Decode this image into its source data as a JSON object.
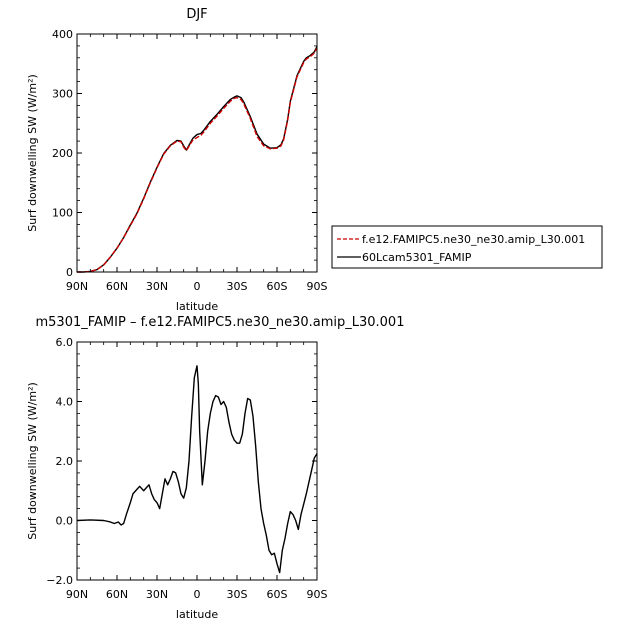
{
  "chart_data": [
    {
      "type": "line",
      "title": "DJF",
      "xlabel": "latitude",
      "ylabel": "Surf downwelling SW (W/m²)",
      "xlim": [
        90,
        -90
      ],
      "ylim": [
        0,
        400
      ],
      "xticks": [
        90,
        60,
        30,
        0,
        -30,
        -60,
        -90
      ],
      "xtick_labels": [
        "90N",
        "60N",
        "30N",
        "0",
        "30S",
        "60S",
        "90S"
      ],
      "yticks": [
        0,
        100,
        200,
        300,
        400
      ],
      "ytick_labels": [
        "0",
        "100",
        "200",
        "300",
        "400"
      ],
      "legend_position": "right, outside plot",
      "series": [
        {
          "name": "f.e12.FAMIPC5.ne30_ne30.amip_L30.001",
          "color": "#cc0000",
          "dash": "dashed",
          "x": [
            90,
            85,
            80,
            75,
            70,
            65,
            60,
            55,
            50,
            45,
            40,
            35,
            30,
            25,
            20,
            15,
            12,
            10,
            8,
            5,
            3,
            0,
            -3,
            -5,
            -10,
            -15,
            -20,
            -25,
            -28,
            -30,
            -33,
            -35,
            -40,
            -45,
            -50,
            -55,
            -60,
            -63,
            -65,
            -68,
            -70,
            -75,
            -80,
            -82,
            -85,
            -88,
            -90
          ],
          "y": [
            0,
            0,
            1,
            4,
            12,
            25,
            40,
            58,
            78,
            98,
            123,
            150,
            175,
            198,
            212,
            220,
            219,
            210,
            204,
            215,
            222,
            226,
            230,
            235,
            250,
            262,
            275,
            287,
            292,
            293,
            290,
            283,
            258,
            228,
            212,
            207,
            208,
            212,
            222,
            255,
            285,
            328,
            352,
            358,
            362,
            368,
            377
          ]
        },
        {
          "name": "60Lcam5301_FAMIP",
          "color": "#000000",
          "dash": "solid",
          "x": [
            90,
            85,
            80,
            75,
            70,
            65,
            60,
            55,
            50,
            45,
            40,
            35,
            30,
            25,
            20,
            15,
            12,
            10,
            8,
            5,
            3,
            0,
            -3,
            -5,
            -10,
            -15,
            -20,
            -25,
            -28,
            -30,
            -33,
            -35,
            -40,
            -45,
            -50,
            -55,
            -60,
            -63,
            -65,
            -68,
            -70,
            -75,
            -80,
            -82,
            -85,
            -88,
            -90
          ],
          "y": [
            0,
            0,
            1,
            4,
            12,
            25,
            40,
            58,
            79,
            99,
            124,
            151,
            176,
            199,
            213,
            221,
            220,
            212,
            205,
            217,
            225,
            231,
            233,
            238,
            253,
            265,
            278,
            290,
            294,
            296,
            293,
            286,
            261,
            232,
            215,
            208,
            209,
            214,
            224,
            257,
            287,
            330,
            354,
            360,
            364,
            370,
            379
          ]
        }
      ]
    },
    {
      "type": "line",
      "title": "m5301_FAMIP – f.e12.FAMIPC5.ne30_ne30.amip_L30.001",
      "xlabel": "latitude",
      "ylabel": "Surf downwelling SW (W/m²)",
      "xlim": [
        90,
        -90
      ],
      "ylim": [
        -2.0,
        6.0
      ],
      "xticks": [
        90,
        60,
        30,
        0,
        -30,
        -60,
        -90
      ],
      "xtick_labels": [
        "90N",
        "60N",
        "30N",
        "0",
        "30S",
        "60S",
        "90S"
      ],
      "yticks": [
        -2.0,
        0.0,
        2.0,
        4.0,
        6.0
      ],
      "ytick_labels": [
        "−2.0",
        "0.0",
        "2.0",
        "4.0",
        "6.0"
      ],
      "series": [
        {
          "color": "#000000",
          "dash": "solid",
          "x": [
            90,
            80,
            70,
            65,
            62,
            59,
            57,
            55,
            53,
            50,
            48,
            45,
            43,
            40,
            38,
            36,
            34,
            32,
            30,
            28,
            26,
            24,
            22,
            20,
            18,
            16,
            14,
            12,
            10,
            8,
            6,
            4,
            2,
            0,
            -1,
            -2,
            -4,
            -6,
            -8,
            -10,
            -12,
            -14,
            -16,
            -18,
            -20,
            -22,
            -24,
            -26,
            -28,
            -30,
            -32,
            -34,
            -36,
            -38,
            -40,
            -42,
            -44,
            -46,
            -48,
            -50,
            -52,
            -54,
            -56,
            -58,
            -60,
            -62,
            -64,
            -66,
            -68,
            -70,
            -72,
            -74,
            -76,
            -78,
            -80,
            -82,
            -84,
            -86,
            -88,
            -90
          ],
          "y": [
            0.0,
            0.02,
            0.0,
            -0.05,
            -0.1,
            -0.05,
            -0.15,
            -0.1,
            0.2,
            0.6,
            0.9,
            1.05,
            1.15,
            1.0,
            1.1,
            1.2,
            0.9,
            0.7,
            0.6,
            0.4,
            0.9,
            1.4,
            1.2,
            1.4,
            1.65,
            1.6,
            1.3,
            0.9,
            0.75,
            1.1,
            2.0,
            3.5,
            4.8,
            5.2,
            4.6,
            3.0,
            1.2,
            2.0,
            3.0,
            3.6,
            4.0,
            4.2,
            4.15,
            3.9,
            4.0,
            3.8,
            3.3,
            2.9,
            2.7,
            2.6,
            2.6,
            2.9,
            3.6,
            4.1,
            4.05,
            3.5,
            2.5,
            1.3,
            0.4,
            -0.1,
            -0.5,
            -1.0,
            -1.15,
            -1.1,
            -1.45,
            -1.75,
            -1.0,
            -0.6,
            -0.1,
            0.3,
            0.2,
            0.0,
            -0.3,
            0.2,
            0.55,
            0.9,
            1.3,
            1.7,
            2.1,
            2.25
          ]
        }
      ]
    }
  ]
}
